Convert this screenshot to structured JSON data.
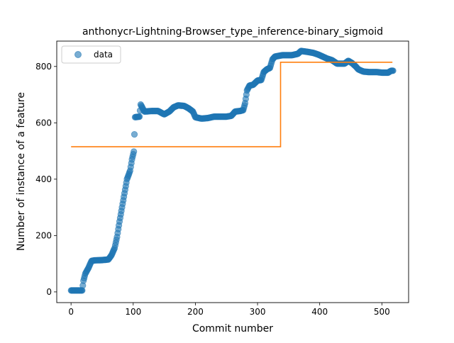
{
  "chart_data": {
    "type": "scatter",
    "title": "anthonycr-Lightning-Browser_type_inference-binary_sigmoid",
    "xlabel": "Commit number",
    "ylabel": "Number of instance of a feature",
    "xlim": [
      -23,
      543
    ],
    "ylim": [
      -38,
      890
    ],
    "xticks": [
      0,
      100,
      200,
      300,
      400,
      500
    ],
    "yticks": [
      0,
      200,
      400,
      600,
      800
    ],
    "grid": false,
    "legend": {
      "position": "top-left",
      "entries": [
        "data"
      ]
    },
    "colors": {
      "data": "#1f77b4",
      "fit": "#ff7f0e"
    },
    "series": [
      {
        "name": "data",
        "kind": "scatter",
        "anchors": [
          [
            0,
            5
          ],
          [
            18,
            5
          ],
          [
            20,
            40
          ],
          [
            23,
            65
          ],
          [
            28,
            85
          ],
          [
            33,
            110
          ],
          [
            38,
            112
          ],
          [
            50,
            113
          ],
          [
            60,
            115
          ],
          [
            65,
            130
          ],
          [
            70,
            155
          ],
          [
            74,
            195
          ],
          [
            78,
            250
          ],
          [
            82,
            300
          ],
          [
            86,
            350
          ],
          [
            90,
            400
          ],
          [
            95,
            430
          ],
          [
            98,
            470
          ],
          [
            101,
            498
          ],
          [
            103,
            620
          ],
          [
            110,
            622
          ],
          [
            112,
            665
          ],
          [
            118,
            640
          ],
          [
            130,
            642
          ],
          [
            140,
            642
          ],
          [
            150,
            630
          ],
          [
            158,
            640
          ],
          [
            165,
            655
          ],
          [
            172,
            662
          ],
          [
            182,
            660
          ],
          [
            190,
            650
          ],
          [
            196,
            640
          ],
          [
            200,
            620
          ],
          [
            210,
            615
          ],
          [
            220,
            617
          ],
          [
            230,
            622
          ],
          [
            240,
            622
          ],
          [
            250,
            622
          ],
          [
            258,
            625
          ],
          [
            264,
            640
          ],
          [
            272,
            642
          ],
          [
            277,
            645
          ],
          [
            280,
            670
          ],
          [
            283,
            715
          ],
          [
            287,
            732
          ],
          [
            293,
            735
          ],
          [
            300,
            750
          ],
          [
            306,
            752
          ],
          [
            310,
            780
          ],
          [
            315,
            790
          ],
          [
            320,
            795
          ],
          [
            324,
            825
          ],
          [
            328,
            835
          ],
          [
            340,
            840
          ],
          [
            355,
            840
          ],
          [
            365,
            845
          ],
          [
            370,
            855
          ],
          [
            380,
            852
          ],
          [
            390,
            848
          ],
          [
            398,
            842
          ],
          [
            405,
            835
          ],
          [
            412,
            828
          ],
          [
            420,
            822
          ],
          [
            428,
            810
          ],
          [
            440,
            810
          ],
          [
            446,
            820
          ],
          [
            452,
            812
          ],
          [
            458,
            800
          ],
          [
            462,
            790
          ],
          [
            470,
            782
          ],
          [
            480,
            780
          ],
          [
            492,
            780
          ],
          [
            500,
            778
          ],
          [
            510,
            778
          ],
          [
            515,
            785
          ],
          [
            518,
            785
          ]
        ]
      },
      {
        "name": "fit",
        "kind": "step",
        "points": [
          [
            0,
            515
          ],
          [
            337,
            515
          ],
          [
            337,
            815
          ],
          [
            517,
            815
          ]
        ]
      }
    ]
  }
}
